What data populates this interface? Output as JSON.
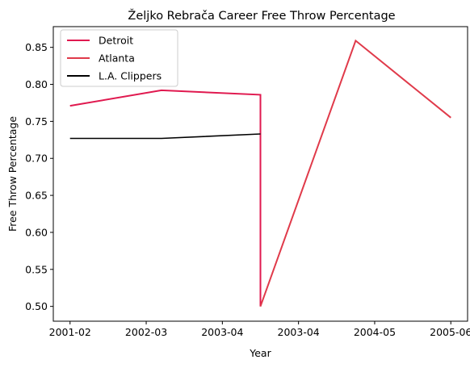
{
  "chart_data": {
    "type": "line",
    "title": "Željko Rebrača Career Free Throw Percentage",
    "xlabel": "Year",
    "ylabel": "Free Throw Percentage",
    "x_categories": [
      "2001-02",
      "2002-03",
      "2003-04",
      "2003-04",
      "2004-05",
      "2005-06"
    ],
    "ylim": [
      0.48,
      0.878
    ],
    "yticks": [
      0.5,
      0.55,
      0.6,
      0.65,
      0.7,
      0.75,
      0.8,
      0.85
    ],
    "ytick_labels": [
      "0.50",
      "0.55",
      "0.60",
      "0.65",
      "0.70",
      "0.75",
      "0.80",
      "0.85"
    ],
    "grid": false,
    "legend_position": "top-left",
    "series": [
      {
        "name": "Detroit",
        "color": "#e0194f",
        "points": [
          [
            0,
            0.771
          ],
          [
            1.2,
            0.792
          ],
          [
            2.5,
            0.786
          ],
          [
            2.5,
            0.5
          ]
        ]
      },
      {
        "name": "Atlanta",
        "color": "#e03a4a",
        "points": [
          [
            2.5,
            0.5
          ],
          [
            3.75,
            0.859
          ],
          [
            5,
            0.755
          ]
        ]
      },
      {
        "name": "L.A. Clippers",
        "color": "#000000",
        "points": [
          [
            0,
            0.727
          ],
          [
            1.2,
            0.727
          ],
          [
            2.5,
            0.733
          ]
        ]
      }
    ]
  }
}
